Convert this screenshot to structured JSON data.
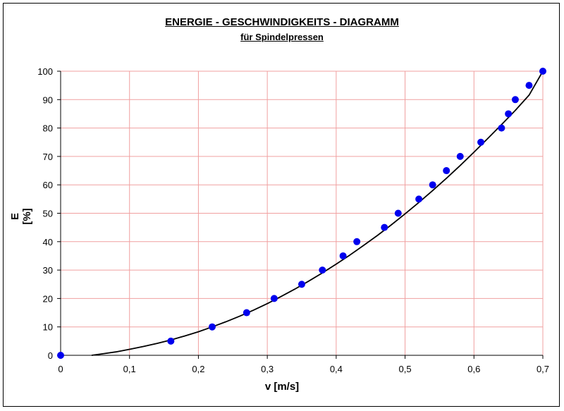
{
  "chart_data": {
    "type": "scatter",
    "title": "ENERGIE - GESCHWINDIGKEITS - DIAGRAMM",
    "subtitle": "für Spindelpressen",
    "xlabel": "v [m/s]",
    "ylabel": "E [%]",
    "xlim": [
      0,
      0.7
    ],
    "ylim": [
      0,
      100
    ],
    "xticks": [
      "0",
      "0,1",
      "0,2",
      "0,3",
      "0,4",
      "0,5",
      "0,6",
      "0,7"
    ],
    "yticks": [
      "0",
      "10",
      "20",
      "30",
      "40",
      "50",
      "60",
      "70",
      "80",
      "90",
      "100"
    ],
    "grid": true,
    "grid_color": "#f0a0a0",
    "point_color": "#0000ee",
    "curve_color": "#000000",
    "series": [
      {
        "x": [
          0,
          0.16,
          0.22,
          0.27,
          0.31,
          0.35,
          0.38,
          0.41,
          0.43,
          0.47,
          0.49,
          0.52,
          0.54,
          0.56,
          0.58,
          0.61,
          0.64,
          0.65,
          0.66,
          0.68,
          0.7
        ],
        "y": [
          0,
          5,
          10,
          15,
          20,
          25,
          30,
          35,
          40,
          45,
          50,
          55,
          60,
          65,
          70,
          75,
          80,
          85,
          90,
          95,
          100
        ]
      }
    ],
    "trend_curve": {
      "x": [
        0.045,
        0.06,
        0.08,
        0.1,
        0.12,
        0.14,
        0.16,
        0.18,
        0.2,
        0.22,
        0.24,
        0.26,
        0.28,
        0.3,
        0.32,
        0.34,
        0.36,
        0.38,
        0.4,
        0.42,
        0.44,
        0.46,
        0.48,
        0.5,
        0.52,
        0.54,
        0.56,
        0.58,
        0.6,
        0.62,
        0.64,
        0.66,
        0.68,
        0.7
      ],
      "y": [
        0,
        0.5,
        1.2,
        2.1,
        3.1,
        4.2,
        5.4,
        6.8,
        8.3,
        10.0,
        11.8,
        13.8,
        15.9,
        18.2,
        20.7,
        23.3,
        26.1,
        29.0,
        32.1,
        35.3,
        38.7,
        42.2,
        45.9,
        49.8,
        53.8,
        58.0,
        62.3,
        66.8,
        71.5,
        76.3,
        81.2,
        86.2,
        91.6,
        100
      ]
    }
  }
}
